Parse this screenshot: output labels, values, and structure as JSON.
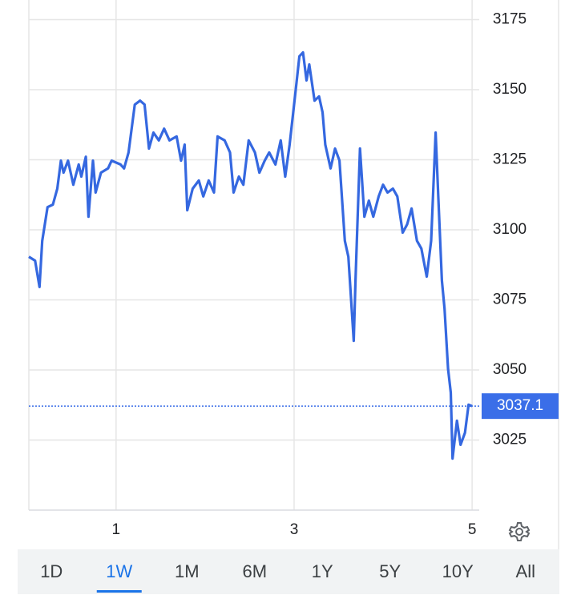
{
  "chart_data": {
    "type": "line",
    "x": [
      0.02,
      0.09,
      0.14,
      0.17,
      0.23,
      0.29,
      0.34,
      0.38,
      0.41,
      0.46,
      0.52,
      0.58,
      0.61,
      0.66,
      0.69,
      0.74,
      0.77,
      0.83,
      0.91,
      0.95,
      1.05,
      1.09,
      1.14,
      1.21,
      1.27,
      1.32,
      1.37,
      1.42,
      1.48,
      1.54,
      1.6,
      1.68,
      1.73,
      1.77,
      1.8,
      1.86,
      1.93,
      1.98,
      2.04,
      2.1,
      2.14,
      2.22,
      2.28,
      2.32,
      2.38,
      2.43,
      2.49,
      2.56,
      2.61,
      2.67,
      2.72,
      2.79,
      2.85,
      2.9,
      2.95,
      3.01,
      3.06,
      3.1,
      3.14,
      3.17,
      3.23,
      3.28,
      3.32,
      3.35,
      3.41,
      3.46,
      3.51,
      3.57,
      3.61,
      3.67,
      3.69,
      3.74,
      3.79,
      3.84,
      3.89,
      3.95,
      4.0,
      4.05,
      4.11,
      4.16,
      4.22,
      4.27,
      4.32,
      4.38,
      4.43,
      4.49,
      4.54,
      4.59,
      4.62,
      4.66,
      4.69,
      4.73,
      4.76,
      4.78,
      4.83,
      4.87,
      4.92,
      4.96,
      5.0
    ],
    "values": [
      3090.4,
      3089.0,
      3079.6,
      3096.1,
      3108.1,
      3109.0,
      3114.7,
      3124.7,
      3120.4,
      3124.7,
      3116.1,
      3123.3,
      3119.0,
      3126.1,
      3104.7,
      3124.7,
      3113.3,
      3120.4,
      3121.9,
      3124.7,
      3123.3,
      3121.9,
      3127.6,
      3144.7,
      3146.1,
      3144.7,
      3129.0,
      3134.7,
      3131.9,
      3136.1,
      3131.9,
      3133.3,
      3124.7,
      3130.4,
      3107.0,
      3114.7,
      3117.6,
      3111.9,
      3117.6,
      3113.3,
      3133.3,
      3131.9,
      3127.6,
      3113.3,
      3119.0,
      3116.1,
      3131.9,
      3127.6,
      3120.4,
      3124.7,
      3127.6,
      3123.3,
      3131.9,
      3119.0,
      3130.4,
      3147.6,
      3161.9,
      3163.3,
      3153.3,
      3159.0,
      3146.1,
      3147.6,
      3141.9,
      3130.4,
      3121.9,
      3129.0,
      3124.7,
      3096.1,
      3090.4,
      3060.4,
      3081.9,
      3129.0,
      3104.7,
      3110.4,
      3104.7,
      3111.9,
      3116.1,
      3113.3,
      3114.7,
      3111.9,
      3099.0,
      3101.9,
      3107.6,
      3096.1,
      3093.3,
      3083.3,
      3096.1,
      3134.7,
      3111.9,
      3081.9,
      3071.9,
      3050.4,
      3041.9,
      3018.4,
      3031.9,
      3023.3,
      3027.6,
      3037.6,
      3037.1
    ],
    "color": "#3568e0",
    "xlim": [
      0.02,
      5.08
    ],
    "xticks": [
      1,
      3,
      5
    ],
    "ylim": [
      3000,
      3182
    ],
    "yticks": [
      3025,
      3050,
      3075,
      3100,
      3125,
      3150,
      3175
    ],
    "grid": true,
    "last_value": 3037.1
  },
  "range_tabs": [
    "1D",
    "1W",
    "1M",
    "6M",
    "1Y",
    "5Y",
    "10Y",
    "All"
  ],
  "selected_tab": 1
}
